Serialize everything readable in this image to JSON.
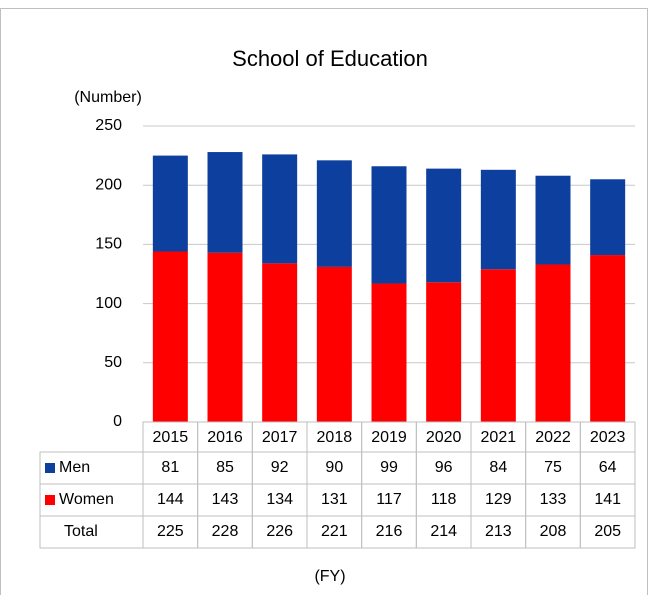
{
  "chart_data": {
    "type": "stacked_bar",
    "title": "School of Education",
    "y_label": "(Number)",
    "x_label": "(FY)",
    "categories": [
      "2015",
      "2016",
      "2017",
      "2018",
      "2019",
      "2020",
      "2021",
      "2022",
      "2023"
    ],
    "series": [
      {
        "name": "Men",
        "color": "#0d3f9e",
        "values": [
          81,
          85,
          92,
          90,
          99,
          96,
          84,
          75,
          64
        ]
      },
      {
        "name": "Women",
        "color": "#ff0000",
        "values": [
          144,
          143,
          134,
          131,
          117,
          118,
          129,
          133,
          141
        ]
      }
    ],
    "total_label": "Total",
    "totals": [
      225,
      228,
      226,
      221,
      216,
      214,
      213,
      208,
      205
    ],
    "ylim": [
      0,
      250
    ],
    "yticks": [
      0,
      50,
      100,
      150,
      200,
      250
    ],
    "grid": true
  }
}
